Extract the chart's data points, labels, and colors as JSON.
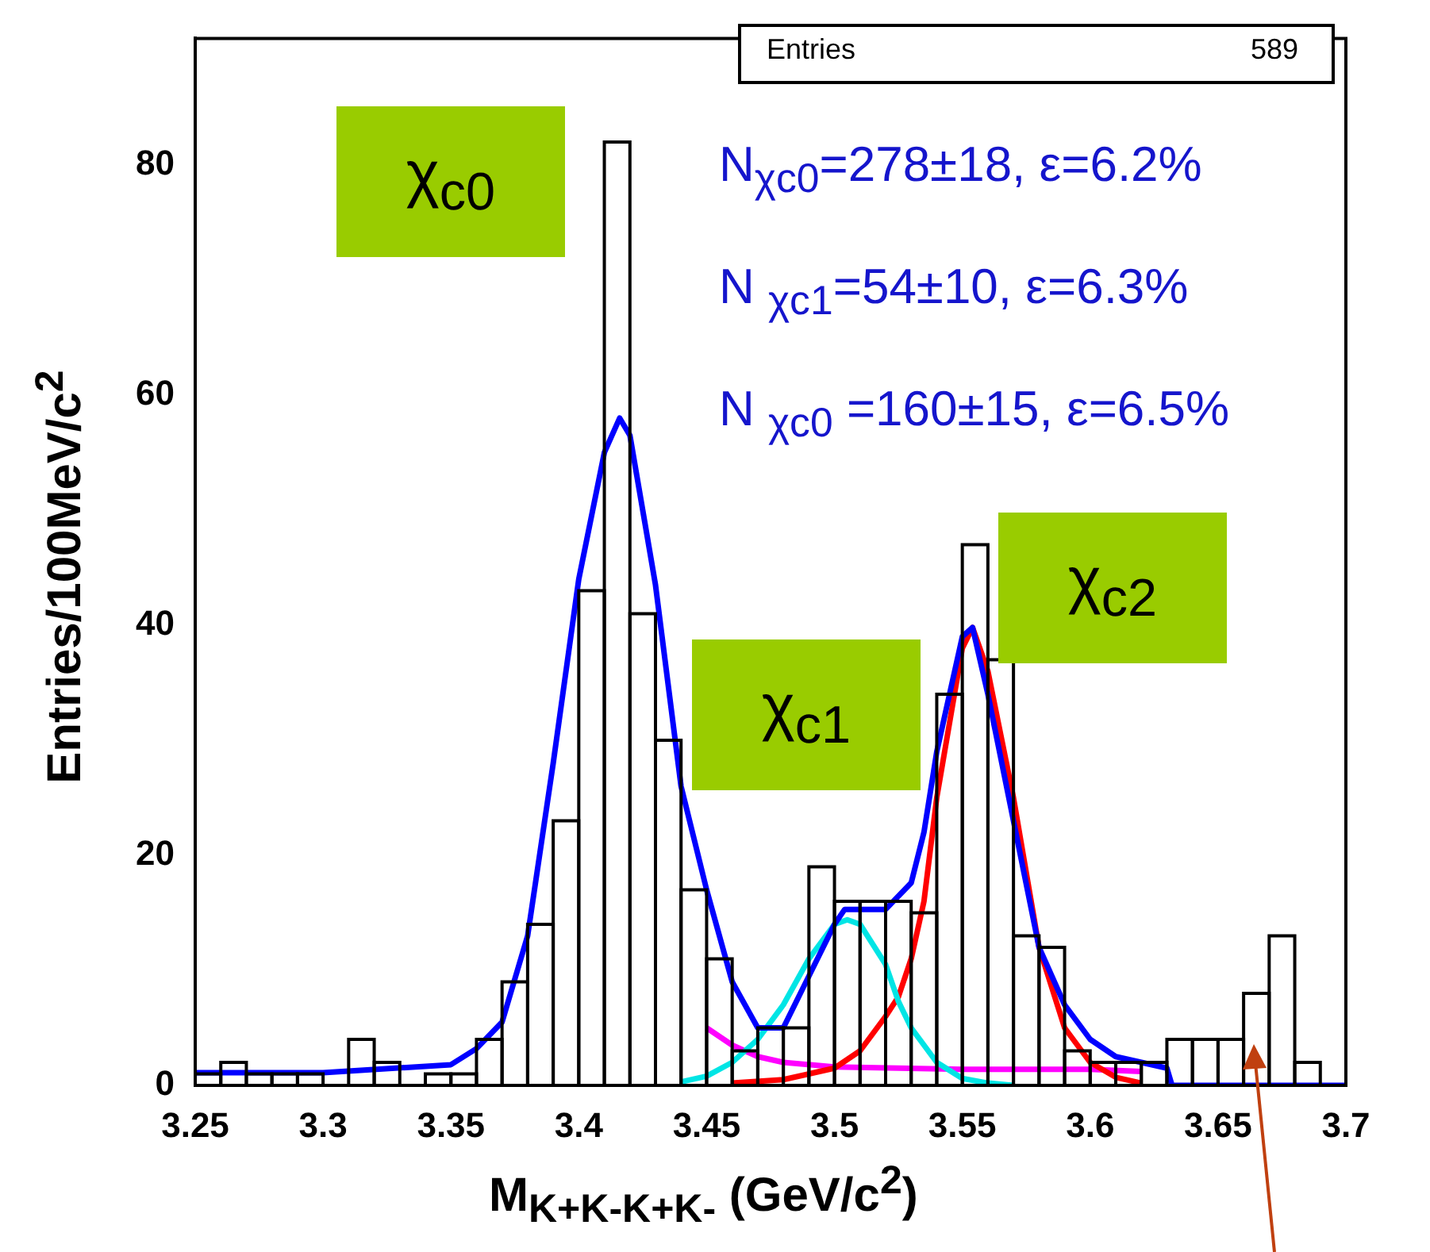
{
  "chart_data": {
    "type": "histogram",
    "xlabel": "M$_{K+K-K+K-}$  (GeV/c$^{2}$)",
    "ylabel": "Entries/100MeV/c$^{2}$",
    "bins": [
      3.25,
      3.26,
      3.27,
      3.28,
      3.29,
      3.3,
      3.31,
      3.32,
      3.33,
      3.34,
      3.35,
      3.36,
      3.37,
      3.38,
      3.39,
      3.4,
      3.41,
      3.42,
      3.43,
      3.44,
      3.45,
      3.46,
      3.47,
      3.48,
      3.49,
      3.5,
      3.51,
      3.52,
      3.53,
      3.54,
      3.55,
      3.56,
      3.57,
      3.58,
      3.59,
      3.6,
      3.61,
      3.62,
      3.63,
      3.64,
      3.65,
      3.66,
      3.67,
      3.68,
      3.69,
      3.7
    ],
    "values": [
      1,
      2,
      1,
      1,
      1,
      0,
      4,
      2,
      0,
      1,
      1,
      4,
      9,
      14,
      23,
      43,
      82,
      41,
      30,
      17,
      11,
      3,
      5,
      5,
      19,
      16,
      16,
      16,
      15,
      34,
      47,
      37,
      13,
      12,
      3,
      2,
      2,
      2,
      4,
      4,
      4,
      8,
      13,
      2,
      0
    ],
    "color": "#000000",
    "series": [
      {
        "type": "line",
        "color": "#0000ff",
        "x": [
          3.25,
          3.3,
          3.35,
          3.36,
          3.37,
          3.38,
          3.39,
          3.4,
          3.41,
          3.416,
          3.42,
          3.43,
          3.44,
          3.45,
          3.46,
          3.47,
          3.48,
          3.49,
          3.5,
          3.504,
          3.51,
          3.52,
          3.53,
          3.535,
          3.54,
          3.55,
          3.554,
          3.56,
          3.57,
          3.58,
          3.59,
          3.6,
          3.61,
          3.62,
          3.63,
          3.632,
          3.7
        ],
        "values": [
          1.1,
          1.1,
          1.8,
          3.2,
          5.5,
          13,
          28,
          44,
          55,
          58,
          56.5,
          43.5,
          26,
          17,
          9,
          5,
          5,
          9.5,
          14,
          15.3,
          15.3,
          15.3,
          17.6,
          22,
          29,
          39,
          39.8,
          34,
          23,
          12,
          7,
          4,
          2.5,
          2,
          1.5,
          0,
          0
        ]
      },
      {
        "type": "line",
        "color": "#00e5e5",
        "x": [
          3.44,
          3.45,
          3.46,
          3.47,
          3.48,
          3.49,
          3.5,
          3.505,
          3.51,
          3.52,
          3.525,
          3.53,
          3.54,
          3.55,
          3.56,
          3.57
        ],
        "values": [
          0.3,
          0.8,
          2,
          4,
          7,
          11,
          14,
          14.4,
          14,
          10.5,
          7.3,
          5,
          2,
          0.6,
          0.2,
          0
        ]
      },
      {
        "type": "line",
        "color": "#ff0000",
        "x": [
          3.46,
          3.48,
          3.49,
          3.5,
          3.51,
          3.52,
          3.525,
          3.53,
          3.535,
          3.54,
          3.55,
          3.554,
          3.56,
          3.57,
          3.58,
          3.59,
          3.6,
          3.61,
          3.62
        ],
        "values": [
          0.2,
          0.5,
          1,
          1.5,
          3,
          6,
          7.7,
          11,
          16,
          25,
          38,
          39.8,
          36,
          25,
          12,
          5,
          2,
          0.7,
          0.2
        ]
      },
      {
        "type": "line",
        "color": "#ff00ff",
        "x": [
          3.45,
          3.46,
          3.47,
          3.48,
          3.5,
          3.55,
          3.6,
          3.62
        ],
        "values": [
          5,
          3.5,
          2.5,
          2,
          1.6,
          1.4,
          1.4,
          1.2
        ]
      }
    ],
    "xlim": [
      3.25,
      3.7
    ],
    "ylim": [
      0,
      91
    ],
    "xticks": [
      3.25,
      3.3,
      3.35,
      3.4,
      3.45,
      3.5,
      3.55,
      3.6,
      3.65,
      3.7
    ],
    "yticks": [
      0,
      20,
      40,
      60,
      80
    ],
    "grid": false,
    "legend": false,
    "annotations": [
      "Entries",
      "589",
      "χ$_{c0}$",
      "χ$_{c1}$",
      "χ$_{c2}$",
      "N$_{χc0}$=278±18, ε=6.2%",
      "N $_{χc1}$=54±10, ε=6.3%",
      "N $_{χc0}$ =160±15, ε=6.5%"
    ]
  }
}
